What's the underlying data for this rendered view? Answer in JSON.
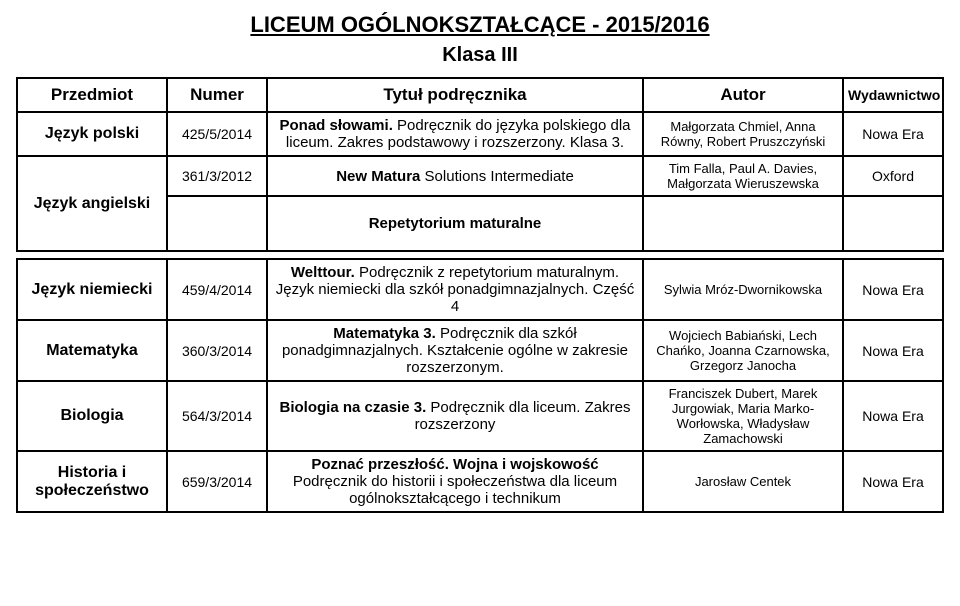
{
  "header": {
    "title": "LICEUM OGÓLNOKSZTAŁCĄCE - 2015/2016",
    "subtitle": "Klasa III"
  },
  "columns": [
    "Przedmiot",
    "Numer",
    "Tytuł podręcznika",
    "Autor",
    "Wydawnictwo"
  ],
  "rows": [
    {
      "subject": "Język polski",
      "number": "425/5/2014",
      "title_bold": "Ponad słowami.",
      "title_rest": " Podręcznik do języka polskiego dla liceum. Zakres podstawowy i rozszerzony. Klasa 3.",
      "author": "Małgorzata Chmiel, Anna Równy, Robert Pruszczyński",
      "publisher": "Nowa Era"
    },
    {
      "subject": "Język angielski",
      "rowspan_subject": 2,
      "number": "361/3/2012",
      "title_bold": "New Matura",
      "title_rest": " Solutions Intermediate",
      "author": "Tim Falla, Paul A. Davies, Małgorzata Wieruszewska",
      "publisher": "Oxford"
    },
    {
      "subrow": true,
      "title_bold": "Repetytorium maturalne",
      "title_rest": "",
      "number": "",
      "author": "",
      "publisher": ""
    },
    {
      "subject": "Język niemiecki",
      "number": "459/4/2014",
      "title_bold": "Welttour.",
      "title_rest": " Podręcznik z repetytorium maturalnym. Język niemiecki dla szkół ponadgimnazjalnych. Część 4",
      "author": "Sylwia Mróz-Dwornikowska",
      "publisher": "Nowa Era"
    },
    {
      "subject": "Matematyka",
      "number": "360/3/2014",
      "title_bold": "Matematyka 3.",
      "title_rest": " Podręcznik dla szkół ponadgimnazjalnych. Kształcenie ogólne w zakresie rozszerzonym.",
      "author": "Wojciech Babiański, Lech Chańko, Joanna Czarnowska, Grzegorz Janocha",
      "publisher": "Nowa Era"
    },
    {
      "subject": "Biologia",
      "number": "564/3/2014",
      "title_bold": "Biologia na czasie 3.",
      "title_rest": " Podręcznik dla liceum. Zakres rozszerzony",
      "author": "Franciszek Dubert, Marek Jurgowiak, Maria Marko-Worłowska, Władysław Zamachowski",
      "publisher": "Nowa Era"
    },
    {
      "subject": "Historia i społeczeństwo",
      "number": "659/3/2014",
      "title_bold": "Poznać przeszłość. Wojna i wojskowość",
      "title_rest": " Podręcznik do historii  i społeczeństwa dla liceum ogólnokształcącego i technikum",
      "author": "Jarosław Centek",
      "publisher": "Nowa Era"
    }
  ]
}
